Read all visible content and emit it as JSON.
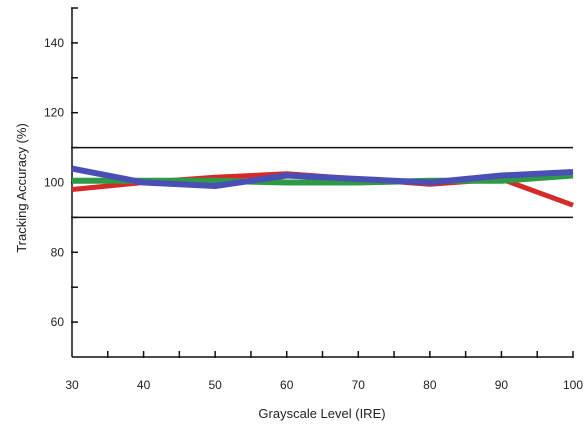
{
  "chart_data": {
    "type": "line",
    "title": "",
    "xlabel": "Grayscale Level (IRE)",
    "ylabel": "Tracking Accuracy (%)",
    "xlim": [
      30,
      100
    ],
    "ylim": [
      50,
      150
    ],
    "x": [
      30,
      40,
      50,
      60,
      70,
      80,
      90,
      100
    ],
    "x_ticks": [
      30,
      40,
      50,
      60,
      70,
      80,
      90,
      100
    ],
    "y_ticks": [
      60,
      80,
      100,
      120,
      140
    ],
    "reference_lines": [
      90,
      110
    ],
    "grid": false,
    "legend": "none",
    "series": [
      {
        "color": "#d42a2a",
        "values": [
          98,
          100,
          101.5,
          102.5,
          101,
          99.5,
          101,
          93.5
        ]
      },
      {
        "color": "#2f9a45",
        "values": [
          100.5,
          100.5,
          100.5,
          100,
          100,
          100.5,
          100.5,
          102
        ]
      },
      {
        "color": "#4a4fb5",
        "values": [
          104,
          100,
          99,
          102,
          101,
          100,
          102,
          103
        ]
      }
    ]
  }
}
